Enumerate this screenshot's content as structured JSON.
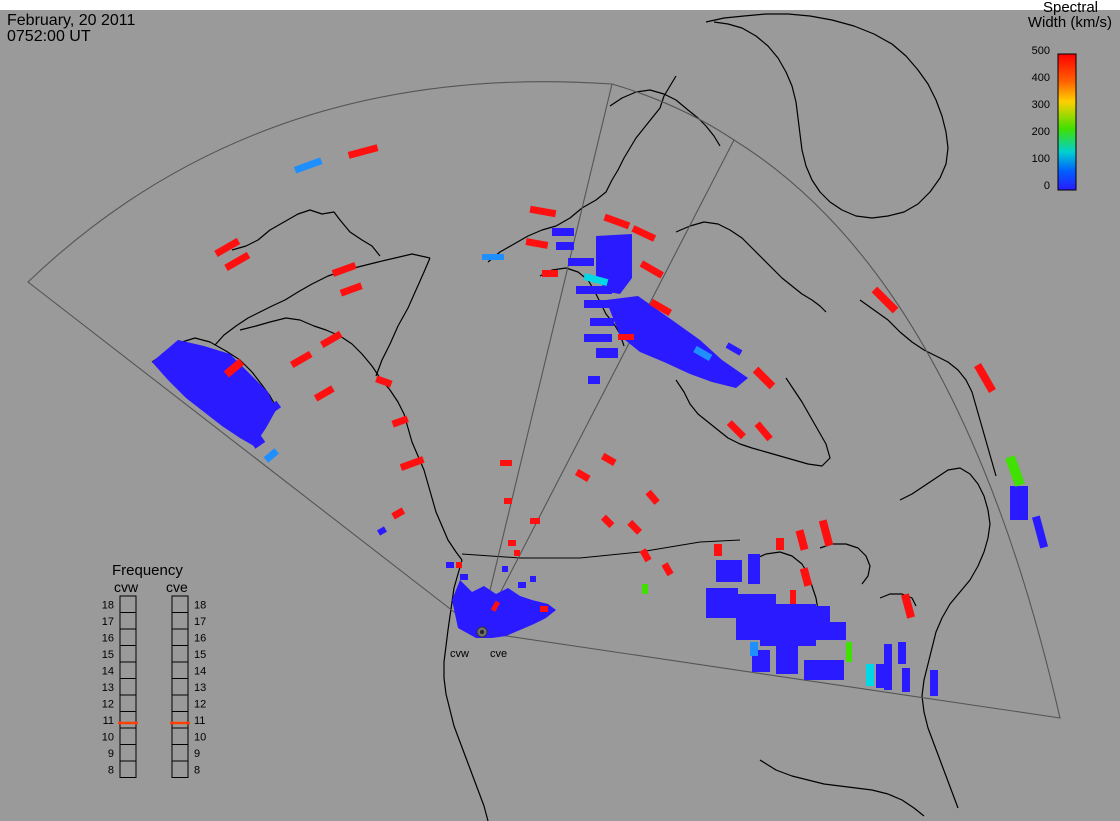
{
  "header": {
    "date": "February, 20 2011",
    "time": "0752:00 UT"
  },
  "colorbar": {
    "title_line1": "Spectral",
    "title_line2": "Width (km/s)",
    "ticks": [
      "500",
      "400",
      "300",
      "200",
      "100",
      "0"
    ],
    "colors": [
      "#ff0000",
      "#ff8000",
      "#ffd000",
      "#40e000",
      "#00d0d0",
      "#0040ff",
      "#2a1aff"
    ]
  },
  "frequency_panel": {
    "title": "Frequency",
    "columns": [
      {
        "name": "cvw",
        "value_mhz": 10.8
      },
      {
        "name": "cve",
        "value_mhz": 10.8
      }
    ],
    "ticks": [
      "18",
      "17",
      "16",
      "15",
      "14",
      "13",
      "12",
      "11",
      "10",
      "9",
      "8"
    ],
    "marker_color": "#ff4000"
  },
  "radar_labels": {
    "west": "cvw",
    "east": "cve"
  },
  "colors": {
    "background": "#9a9a9a",
    "coastline": "#000000",
    "fov_outline": "#555555",
    "scatter_low": "#2a1aff",
    "scatter_mid": "#1f8fff",
    "scatter_cyan": "#00d8e8",
    "scatter_green": "#40e000",
    "scatter_high": "#ff1010"
  }
}
